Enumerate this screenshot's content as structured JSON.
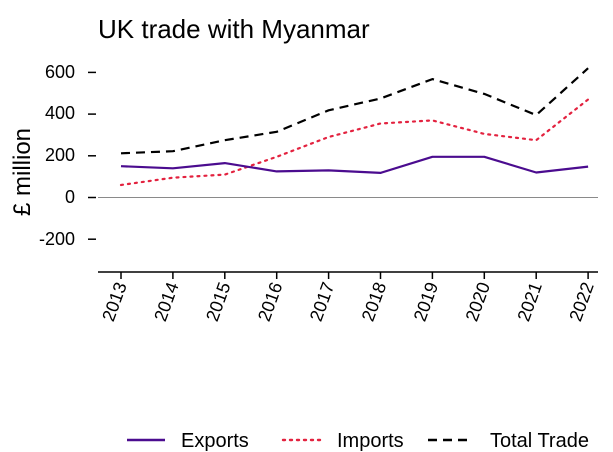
{
  "chart_data": {
    "type": "line",
    "title": "UK trade with Myanmar",
    "xlabel": "",
    "ylabel": "£ million",
    "categories": [
      "2013",
      "2014",
      "2015",
      "2016",
      "2017",
      "2018",
      "2019",
      "2020",
      "2021",
      "2022"
    ],
    "yticks": [
      "600",
      "400",
      "200",
      "0",
      "-200"
    ],
    "ylim": [
      -370,
      630
    ],
    "grid": false,
    "legend_position": "bottom",
    "series": [
      {
        "name": "Exports",
        "color": "#4B0C8F",
        "dash": "solid",
        "values": [
          150,
          140,
          165,
          125,
          130,
          118,
          195,
          195,
          120,
          148
        ]
      },
      {
        "name": "Imports",
        "color": "#E3223F",
        "dash": "dotted",
        "values": [
          60,
          95,
          110,
          195,
          290,
          355,
          370,
          305,
          275,
          470
        ]
      },
      {
        "name": "Total Trade",
        "color": "#000000",
        "dash": "dashed",
        "values": [
          212,
          222,
          275,
          315,
          418,
          475,
          568,
          497,
          395,
          620
        ]
      }
    ]
  }
}
